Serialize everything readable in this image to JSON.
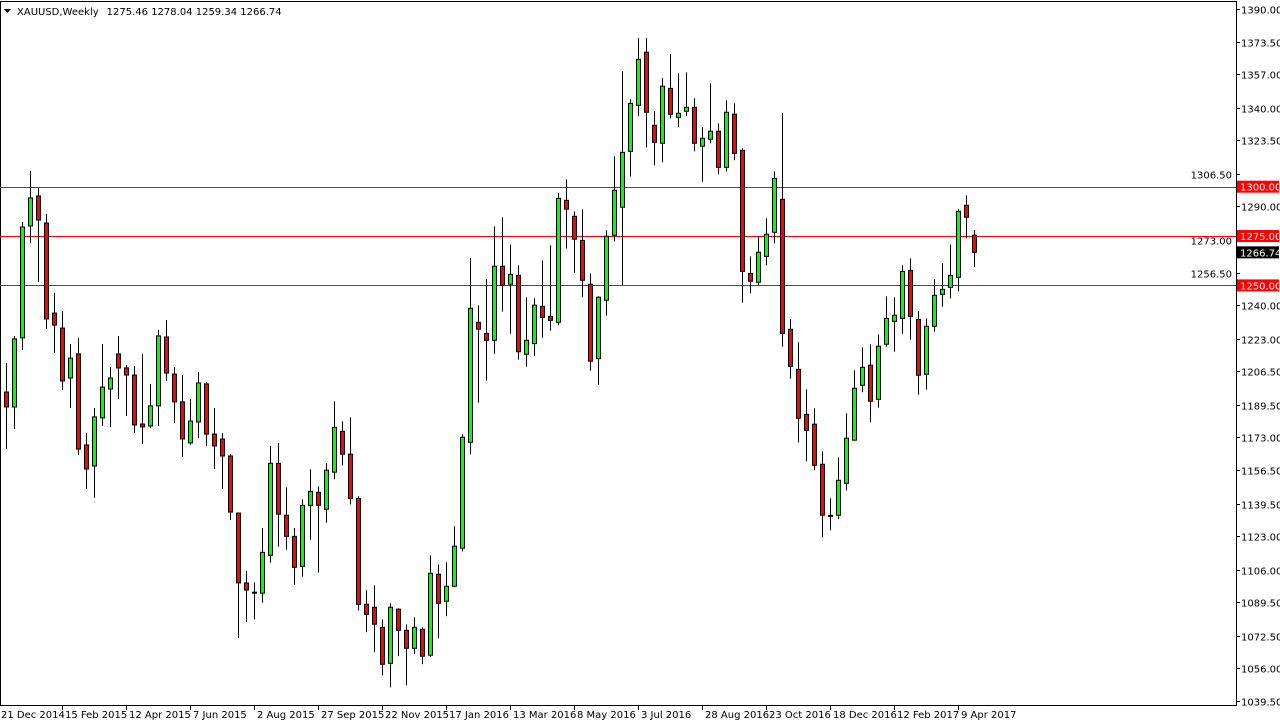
{
  "header": {
    "symbol_timeframe": "XAUUSD,Weekly",
    "ohlc_readout": "1275.46 1278.04 1259.34 1266.74",
    "menu_icon": "triangle-down-icon"
  },
  "colors": {
    "bull": "#00ff00",
    "bear": "#ff0000",
    "outline": "#000000",
    "level_line": "#ff0000",
    "current_price_bg": "#000000"
  },
  "chart_data": {
    "type": "candlestick",
    "symbol": "XAUUSD",
    "timeframe": "Weekly",
    "ylim": [
      1039.5,
      1390.0
    ],
    "grid": false,
    "y_ticks": [
      "1390.00",
      "1373.50",
      "1357.00",
      "1340.00",
      "1323.50",
      "1306.50",
      "1290.00",
      "1273.00",
      "1256.50",
      "1240.00",
      "1223.00",
      "1206.50",
      "1189.50",
      "1173.00",
      "1156.50",
      "1139.50",
      "1123.00",
      "1106.00",
      "1089.50",
      "1072.50",
      "1056.00",
      "1039.50"
    ],
    "x_ticks": [
      {
        "date": "2014-12-21",
        "label": "21 Dec 2014"
      },
      {
        "date": "2015-02-15",
        "label": "15 Feb 2015"
      },
      {
        "date": "2015-04-12",
        "label": "12 Apr 2015"
      },
      {
        "date": "2015-06-07",
        "label": "7 Jun 2015"
      },
      {
        "date": "2015-08-02",
        "label": "2 Aug 2015"
      },
      {
        "date": "2015-09-27",
        "label": "27 Sep 2015"
      },
      {
        "date": "2015-11-22",
        "label": "22 Nov 2015"
      },
      {
        "date": "2016-01-17",
        "label": "17 Jan 2016"
      },
      {
        "date": "2016-03-13",
        "label": "13 Mar 2016"
      },
      {
        "date": "2016-05-08",
        "label": "8 May 2016"
      },
      {
        "date": "2016-07-03",
        "label": "3 Jul 2016"
      },
      {
        "date": "2016-08-28",
        "label": "28 Aug 2016"
      },
      {
        "date": "2016-10-23",
        "label": "23 Oct 2016"
      },
      {
        "date": "2016-12-18",
        "label": "18 Dec 2016"
      },
      {
        "date": "2017-02-12",
        "label": "12 Feb 2017"
      },
      {
        "date": "2017-04-09",
        "label": "9 Apr 2017"
      }
    ],
    "levels": [
      {
        "price": 1300.0,
        "label": "1300.00"
      },
      {
        "price": 1275.0,
        "label": "1275.00"
      },
      {
        "price": 1250.0,
        "label": "1250.00"
      }
    ],
    "current_price": {
      "price": 1266.74,
      "label": "1266.74"
    },
    "candles_columns": [
      "date",
      "open",
      "high",
      "low",
      "close"
    ],
    "candles": [
      [
        "2014-12-28",
        1196.0,
        1210.7,
        1167.1,
        1188.4
      ],
      [
        "2015-01-04",
        1188.4,
        1224.4,
        1177.3,
        1222.9
      ],
      [
        "2015-01-11",
        1223.4,
        1282.1,
        1217.3,
        1279.6
      ],
      [
        "2015-01-18",
        1280.1,
        1308.0,
        1271.5,
        1294.3
      ],
      [
        "2015-01-25",
        1295.3,
        1299.3,
        1251.7,
        1283.1
      ],
      [
        "2015-02-01",
        1281.6,
        1286.2,
        1227.9,
        1233.0
      ],
      [
        "2015-02-08",
        1236.0,
        1246.2,
        1215.8,
        1229.9
      ],
      [
        "2015-02-15",
        1228.4,
        1237.0,
        1197.0,
        1201.6
      ],
      [
        "2015-02-22",
        1203.1,
        1220.3,
        1188.0,
        1213.2
      ],
      [
        "2015-03-01",
        1215.3,
        1223.4,
        1164.1,
        1167.1
      ],
      [
        "2015-03-08",
        1169.2,
        1175.2,
        1146.9,
        1157.0
      ],
      [
        "2015-03-15",
        1158.5,
        1187.9,
        1142.4,
        1183.4
      ],
      [
        "2015-03-22",
        1182.9,
        1220.3,
        1178.8,
        1198.5
      ],
      [
        "2015-03-29",
        1197.5,
        1208.7,
        1178.3,
        1203.1
      ],
      [
        "2015-04-05",
        1215.3,
        1224.4,
        1192.5,
        1208.2
      ],
      [
        "2015-04-12",
        1208.2,
        1209.7,
        1183.9,
        1204.6
      ],
      [
        "2015-04-19",
        1204.6,
        1209.2,
        1175.2,
        1179.3
      ],
      [
        "2015-04-26",
        1179.8,
        1215.3,
        1169.7,
        1178.3
      ],
      [
        "2015-05-03",
        1178.8,
        1200.1,
        1177.8,
        1189.0
      ],
      [
        "2015-05-10",
        1189.0,
        1227.4,
        1178.8,
        1224.4
      ],
      [
        "2015-05-17",
        1223.9,
        1232.5,
        1201.6,
        1205.6
      ],
      [
        "2015-05-24",
        1205.1,
        1208.7,
        1180.3,
        1191.0
      ],
      [
        "2015-05-31",
        1191.0,
        1204.6,
        1163.1,
        1172.2
      ],
      [
        "2015-06-07",
        1170.2,
        1192.5,
        1169.2,
        1181.3
      ],
      [
        "2015-06-14",
        1180.8,
        1206.1,
        1172.7,
        1200.6
      ],
      [
        "2015-06-21",
        1200.1,
        1201.1,
        1168.7,
        1174.7
      ],
      [
        "2015-06-28",
        1174.7,
        1187.9,
        1157.0,
        1168.7
      ],
      [
        "2015-07-05",
        1172.2,
        1175.2,
        1146.9,
        1163.6
      ],
      [
        "2015-07-12",
        1163.6,
        1164.6,
        1131.2,
        1135.2
      ],
      [
        "2015-07-19",
        1134.7,
        1134.7,
        1071.4,
        1099.3
      ],
      [
        "2015-07-26",
        1099.3,
        1105.4,
        1079.5,
        1095.7
      ],
      [
        "2015-08-02",
        1094.6,
        1099.6,
        1080.9,
        1094.2
      ],
      [
        "2015-08-09",
        1094.1,
        1127.1,
        1089.3,
        1114.8
      ],
      [
        "2015-08-16",
        1113.3,
        1168.7,
        1109.6,
        1159.9
      ],
      [
        "2015-08-23",
        1159.9,
        1170.2,
        1117.7,
        1134.1
      ],
      [
        "2015-08-30",
        1133.6,
        1147.7,
        1116.1,
        1122.9
      ],
      [
        "2015-09-06",
        1122.9,
        1127.1,
        1098.4,
        1107.2
      ],
      [
        "2015-09-13",
        1107.7,
        1141.7,
        1102.5,
        1138.6
      ],
      [
        "2015-09-20",
        1138.6,
        1156.9,
        1121.2,
        1145.7
      ],
      [
        "2015-09-27",
        1145.2,
        1148.2,
        1104.5,
        1138.6
      ],
      [
        "2015-10-04",
        1136.6,
        1159.9,
        1129.8,
        1156.4
      ],
      [
        "2015-10-11",
        1155.4,
        1191.3,
        1151.8,
        1178.1
      ],
      [
        "2015-10-18",
        1176.1,
        1181.2,
        1158.9,
        1164.5
      ],
      [
        "2015-10-25",
        1164.5,
        1183.2,
        1139.1,
        1142.1
      ],
      [
        "2015-11-01",
        1142.1,
        1143.2,
        1085.4,
        1088.5
      ],
      [
        "2015-11-08",
        1088.5,
        1095.6,
        1074.3,
        1083.4
      ],
      [
        "2015-11-15",
        1087.0,
        1098.1,
        1064.2,
        1078.4
      ],
      [
        "2015-11-22",
        1076.8,
        1080.9,
        1052.5,
        1058.1
      ],
      [
        "2015-11-29",
        1058.6,
        1089.0,
        1046.4,
        1087.0
      ],
      [
        "2015-12-06",
        1086.0,
        1086.5,
        1062.2,
        1075.3
      ],
      [
        "2015-12-13",
        1075.3,
        1078.3,
        1047.4,
        1066.2
      ],
      [
        "2015-12-20",
        1066.2,
        1081.9,
        1063.2,
        1076.8
      ],
      [
        "2015-12-27",
        1075.8,
        1076.8,
        1058.1,
        1062.2
      ],
      [
        "2016-01-03",
        1062.7,
        1113.3,
        1061.7,
        1104.2
      ],
      [
        "2016-01-10",
        1103.7,
        1108.7,
        1071.3,
        1089.0
      ],
      [
        "2016-01-17",
        1090.0,
        1109.8,
        1082.4,
        1097.6
      ],
      [
        "2016-01-24",
        1097.6,
        1128.0,
        1097.1,
        1117.9
      ],
      [
        "2016-01-31",
        1116.9,
        1174.6,
        1115.3,
        1173.1
      ],
      [
        "2016-02-07",
        1170.5,
        1263.9,
        1164.5,
        1238.4
      ],
      [
        "2016-02-14",
        1231.3,
        1239.9,
        1190.6,
        1227.8
      ],
      [
        "2016-02-21",
        1225.7,
        1253.3,
        1201.7,
        1222.2
      ],
      [
        "2016-02-28",
        1222.2,
        1279.9,
        1215.4,
        1259.7
      ],
      [
        "2016-03-06",
        1259.7,
        1284.5,
        1236.7,
        1250.1
      ],
      [
        "2016-03-13",
        1250.6,
        1270.8,
        1225.5,
        1255.6
      ],
      [
        "2016-03-20",
        1255.1,
        1260.2,
        1212.4,
        1216.4
      ],
      [
        "2016-03-27",
        1215.1,
        1244.0,
        1208.8,
        1222.2
      ],
      [
        "2016-04-03",
        1220.5,
        1243.5,
        1214.4,
        1240.0
      ],
      [
        "2016-04-10",
        1239.4,
        1262.7,
        1223.5,
        1233.8
      ],
      [
        "2016-04-17",
        1234.3,
        1270.3,
        1227.1,
        1232.3
      ],
      [
        "2016-04-24",
        1231.3,
        1296.7,
        1229.8,
        1294.1
      ],
      [
        "2016-05-01",
        1293.1,
        1303.7,
        1268.6,
        1288.6
      ],
      [
        "2016-05-08",
        1285.0,
        1287.5,
        1256.4,
        1273.4
      ],
      [
        "2016-05-15",
        1272.8,
        1288.6,
        1244.0,
        1252.6
      ],
      [
        "2016-05-22",
        1250.6,
        1256.1,
        1206.8,
        1211.6
      ],
      [
        "2016-05-29",
        1212.9,
        1244.5,
        1199.7,
        1244.0
      ],
      [
        "2016-06-05",
        1242.5,
        1278.0,
        1234.7,
        1274.9
      ],
      [
        "2016-06-12",
        1275.4,
        1315.4,
        1272.3,
        1298.2
      ],
      [
        "2016-06-19",
        1289.6,
        1358.5,
        1250.1,
        1317.4
      ],
      [
        "2016-06-26",
        1317.9,
        1344.3,
        1305.1,
        1342.2
      ],
      [
        "2016-07-03",
        1341.2,
        1375.2,
        1335.7,
        1364.5
      ],
      [
        "2016-07-10",
        1368.1,
        1375.2,
        1320.0,
        1337.7
      ],
      [
        "2016-07-17",
        1331.1,
        1338.2,
        1310.8,
        1322.5
      ],
      [
        "2016-07-24",
        1322.0,
        1354.9,
        1312.4,
        1350.9
      ],
      [
        "2016-07-31",
        1349.8,
        1367.2,
        1334.6,
        1336.7
      ],
      [
        "2016-08-07",
        1335.1,
        1357.4,
        1330.1,
        1337.2
      ],
      [
        "2016-08-14",
        1338.2,
        1357.9,
        1335.7,
        1340.2
      ],
      [
        "2016-08-21",
        1340.2,
        1344.8,
        1317.9,
        1322.0
      ],
      [
        "2016-08-28",
        1320.5,
        1330.1,
        1302.5,
        1324.5
      ],
      [
        "2016-09-04",
        1324.0,
        1352.4,
        1322.0,
        1328.1
      ],
      [
        "2016-09-11",
        1328.1,
        1332.1,
        1306.3,
        1309.8
      ],
      [
        "2016-09-18",
        1309.8,
        1343.8,
        1307.8,
        1337.7
      ],
      [
        "2016-09-25",
        1336.7,
        1342.2,
        1313.4,
        1316.9
      ],
      [
        "2016-10-02",
        1318.4,
        1319.4,
        1241.2,
        1257.1
      ],
      [
        "2016-10-09",
        1256.1,
        1264.7,
        1246.0,
        1252.1
      ],
      [
        "2016-10-16",
        1251.6,
        1274.9,
        1250.1,
        1266.8
      ],
      [
        "2016-10-23",
        1264.7,
        1284.0,
        1260.2,
        1275.9
      ],
      [
        "2016-10-30",
        1276.9,
        1307.8,
        1271.3,
        1304.2
      ],
      [
        "2016-11-06",
        1293.6,
        1337.3,
        1219.0,
        1225.7
      ],
      [
        "2016-11-13",
        1227.8,
        1233.0,
        1202.7,
        1209.0
      ],
      [
        "2016-11-20",
        1207.5,
        1221.2,
        1170.5,
        1182.7
      ],
      [
        "2016-11-27",
        1184.7,
        1197.4,
        1160.9,
        1176.6
      ],
      [
        "2016-12-04",
        1179.7,
        1187.8,
        1156.4,
        1158.9
      ],
      [
        "2016-12-11",
        1159.4,
        1166.0,
        1122.4,
        1133.6
      ],
      [
        "2016-12-18",
        1133.5,
        1142.2,
        1126.0,
        1133.3
      ],
      [
        "2016-12-25",
        1133.6,
        1162.9,
        1131.6,
        1151.3
      ],
      [
        "2017-01-01",
        1149.8,
        1185.2,
        1146.2,
        1172.6
      ],
      [
        "2017-01-08",
        1171.6,
        1207.0,
        1171.6,
        1197.9
      ],
      [
        "2017-01-15",
        1199.4,
        1218.7,
        1195.9,
        1208.5
      ],
      [
        "2017-01-22",
        1209.6,
        1220.2,
        1180.7,
        1191.3
      ],
      [
        "2017-01-29",
        1192.3,
        1225.2,
        1188.1,
        1219.2
      ],
      [
        "2017-02-05",
        1220.2,
        1244.5,
        1219.0,
        1233.3
      ],
      [
        "2017-02-12",
        1231.8,
        1244.0,
        1216.4,
        1234.9
      ],
      [
        "2017-02-19",
        1233.3,
        1260.2,
        1225.5,
        1257.1
      ],
      [
        "2017-02-26",
        1257.6,
        1263.7,
        1222.5,
        1234.3
      ],
      [
        "2017-03-05",
        1232.8,
        1236.9,
        1194.7,
        1204.5
      ],
      [
        "2017-03-12",
        1205.0,
        1233.3,
        1197.2,
        1229.3
      ],
      [
        "2017-03-19",
        1229.3,
        1253.1,
        1226.6,
        1245.0
      ],
      [
        "2017-03-26",
        1245.5,
        1261.2,
        1239.2,
        1248.0
      ],
      [
        "2017-04-02",
        1249.0,
        1270.8,
        1243.5,
        1255.1
      ],
      [
        "2017-04-09",
        1254.1,
        1288.6,
        1247.0,
        1287.5
      ],
      [
        "2017-04-16",
        1290.6,
        1295.6,
        1273.9,
        1284.5
      ],
      [
        "2017-04-23",
        1275.46,
        1278.04,
        1259.34,
        1266.74
      ]
    ]
  }
}
